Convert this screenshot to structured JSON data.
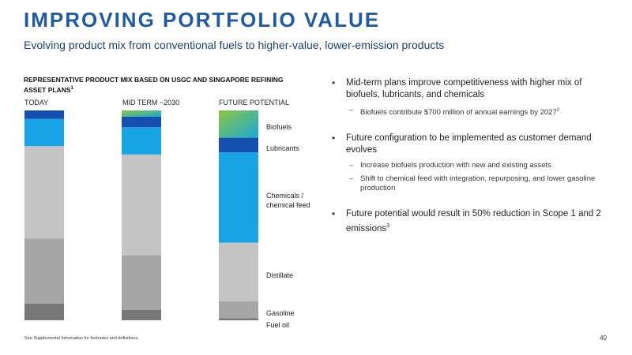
{
  "header": {
    "title": "IMPROVING PORTFOLIO VALUE",
    "subtitle": "Evolving product mix from conventional fuels to higher-value, lower-emission products"
  },
  "chart_title": {
    "text": "REPRESENTATIVE PRODUCT MIX BASED ON USGC AND SINGAPORE REFINING ASSET PLANS",
    "footnote_mark": "1"
  },
  "chart_data": {
    "type": "bar",
    "stacked": true,
    "categories": [
      "TODAY",
      "MID TERM ~2030",
      "FUTURE POTENTIAL"
    ],
    "series": [
      {
        "name": "Fuel oil",
        "values": [
          8,
          5,
          1
        ],
        "color": "#777777"
      },
      {
        "name": "Gasoline",
        "values": [
          31,
          26,
          8
        ],
        "color": "#a6a6a6"
      },
      {
        "name": "Distillate",
        "values": [
          44,
          48,
          28
        ],
        "color": "#c4c4c4"
      },
      {
        "name": "Chemicals / chemical feed",
        "values": [
          13,
          13,
          43
        ],
        "color": "#16a4e6"
      },
      {
        "name": "Lubricants",
        "values": [
          4,
          5,
          7
        ],
        "color": "#1550b0"
      },
      {
        "name": "Biofuels",
        "values": [
          0,
          3,
          13
        ],
        "color": "gradient-green-to-cyan"
      }
    ],
    "ylim": [
      0,
      100
    ],
    "grid": false,
    "legend": "right-of-last-bar"
  },
  "bullets": [
    {
      "text": "Mid-term plans improve competitiveness with higher mix of biofuels, lubricants, and chemicals",
      "subs": [
        {
          "text": "Biofuels contribute $700 million of annual earnings by 2027",
          "sup": "2"
        }
      ]
    },
    {
      "text": "Future configuration to be implemented as customer demand evolves",
      "subs": [
        {
          "text": "Increase biofuels production with new and existing assets",
          "sup": ""
        },
        {
          "text": "Shift to chemical feed with integration, repurposing, and lower gasoline production",
          "sup": ""
        }
      ]
    },
    {
      "text": "Future potential would result in 50% reduction in Scope 1 and 2 emissions",
      "sup": "3",
      "subs": []
    }
  ],
  "footer": {
    "footnote": "See Supplemental Information for footnotes and definitions.",
    "page": "40"
  },
  "colors": {
    "title": "#1f5aa6",
    "subtitle": "#1b3f73"
  }
}
